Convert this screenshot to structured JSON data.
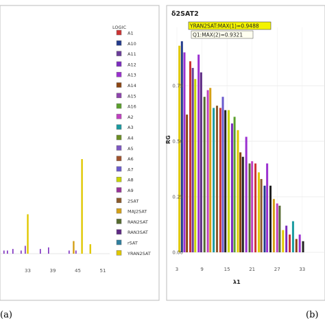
{
  "left_panel": {
    "panel_label": "(a)",
    "legend_title": "LOGIC",
    "legend": [
      {
        "name": "A1",
        "color": "#cc3333"
      },
      {
        "name": "A10",
        "color": "#233b8c"
      },
      {
        "name": "A11",
        "color": "#6a3d9a"
      },
      {
        "name": "A12",
        "color": "#7b2cbf"
      },
      {
        "name": "A13",
        "color": "#9b30d0"
      },
      {
        "name": "A14",
        "color": "#8b4513"
      },
      {
        "name": "A15",
        "color": "#8e44ad"
      },
      {
        "name": "A16",
        "color": "#5aa02c"
      },
      {
        "name": "A2",
        "color": "#c040c0"
      },
      {
        "name": "A3",
        "color": "#1a9aa0"
      },
      {
        "name": "A4",
        "color": "#6b8e23"
      },
      {
        "name": "A5",
        "color": "#7e57c2"
      },
      {
        "name": "A6",
        "color": "#a0522d"
      },
      {
        "name": "A7",
        "color": "#6a5acd"
      },
      {
        "name": "A8",
        "color": "#c8d400"
      },
      {
        "name": "A9",
        "color": "#993399"
      },
      {
        "name": "2SAT",
        "color": "#8b5a2b"
      },
      {
        "name": "MAJ2SAT",
        "color": "#d4a017"
      },
      {
        "name": "RAN2SAT",
        "color": "#556b2f"
      },
      {
        "name": "RAN3SAT",
        "color": "#5e2a84"
      },
      {
        "name": "rSAT",
        "color": "#2f7f9f"
      },
      {
        "name": "YRAN2SAT",
        "color": "#e0c800"
      }
    ],
    "x_ticks": [
      "33",
      "39",
      "45",
      "51"
    ]
  },
  "right_panel": {
    "panel_label": "(b)",
    "title": "δ2SAT2",
    "annotation_1": "YRAN2SAT:MAX(1)=0.9488",
    "annotation_2": "Q1:MAX(2)=0.9321",
    "y_label": "RG",
    "x_label": "λ1",
    "y_ticks": [
      "0.00",
      "0.25",
      "0.50",
      "0.75"
    ],
    "x_ticks": [
      "3",
      "9",
      "15",
      "21",
      "27",
      "33"
    ]
  },
  "chart_data": [
    {
      "type": "bar",
      "title": "",
      "xlabel": "",
      "ylabel": "",
      "x": [
        33,
        39,
        45,
        51
      ],
      "notes": "partially visible panel",
      "series": [
        {
          "name": "YRAN2SAT",
          "x": [
            33,
            46,
            48
          ],
          "values": [
            0.25,
            0.6,
            0.06
          ]
        },
        {
          "name": "MAJ2SAT",
          "x": [
            44
          ],
          "values": [
            0.08
          ]
        }
      ]
    },
    {
      "type": "bar",
      "title": "δ2SAT2",
      "xlabel": "λ1",
      "ylabel": "RG",
      "ylim": [
        0,
        1.0
      ],
      "yticks": [
        0.0,
        0.25,
        0.5,
        0.75
      ],
      "xticks": [
        3,
        9,
        15,
        21,
        27,
        33
      ],
      "max_labels": [
        {
          "label": "YRAN2SAT:MAX(1)=0.9488",
          "x": 4,
          "y": 0.9488
        },
        {
          "label": "Q1:MAX(2)=0.9321",
          "x": 5,
          "y": 0.9321
        }
      ],
      "bars": [
        {
          "x": 3.6,
          "y": 0.93,
          "color": "#e0c800"
        },
        {
          "x": 4.2,
          "y": 0.95,
          "color": "#233b8c"
        },
        {
          "x": 4.8,
          "y": 0.9,
          "color": "#9b30d0"
        },
        {
          "x": 5.4,
          "y": 0.62,
          "color": "#8b4513"
        },
        {
          "x": 6.2,
          "y": 0.86,
          "color": "#cc3333"
        },
        {
          "x": 6.8,
          "y": 0.83,
          "color": "#6a3d9a"
        },
        {
          "x": 7.4,
          "y": 0.78,
          "color": "#c8d400"
        },
        {
          "x": 8.2,
          "y": 0.89,
          "color": "#9b30d0"
        },
        {
          "x": 8.8,
          "y": 0.81,
          "color": "#5e2a84"
        },
        {
          "x": 9.6,
          "y": 0.7,
          "color": "#556b2f"
        },
        {
          "x": 10.4,
          "y": 0.73,
          "color": "#c040c0"
        },
        {
          "x": 11.0,
          "y": 0.74,
          "color": "#d4a017"
        },
        {
          "x": 11.8,
          "y": 0.65,
          "color": "#1a9aa0"
        },
        {
          "x": 12.6,
          "y": 0.66,
          "color": "#8b5a2b"
        },
        {
          "x": 13.4,
          "y": 0.65,
          "color": "#cc3333"
        },
        {
          "x": 14.0,
          "y": 0.7,
          "color": "#6a5acd"
        },
        {
          "x": 14.6,
          "y": 0.64,
          "color": "#222222"
        },
        {
          "x": 15.4,
          "y": 0.64,
          "color": "#c8d400"
        },
        {
          "x": 16.2,
          "y": 0.58,
          "color": "#7b2cbf"
        },
        {
          "x": 16.8,
          "y": 0.61,
          "color": "#5aa02c"
        },
        {
          "x": 17.6,
          "y": 0.55,
          "color": "#e0c800"
        },
        {
          "x": 18.2,
          "y": 0.45,
          "color": "#8b4513"
        },
        {
          "x": 18.8,
          "y": 0.43,
          "color": "#222222"
        },
        {
          "x": 19.6,
          "y": 0.52,
          "color": "#9b30d0"
        },
        {
          "x": 20.4,
          "y": 0.4,
          "color": "#556b2f"
        },
        {
          "x": 21.0,
          "y": 0.41,
          "color": "#c040c0"
        },
        {
          "x": 21.8,
          "y": 0.4,
          "color": "#cc3333"
        },
        {
          "x": 22.6,
          "y": 0.36,
          "color": "#e0c800"
        },
        {
          "x": 23.2,
          "y": 0.33,
          "color": "#8b5a2b"
        },
        {
          "x": 24.0,
          "y": 0.3,
          "color": "#233b8c"
        },
        {
          "x": 24.6,
          "y": 0.4,
          "color": "#9b30d0"
        },
        {
          "x": 25.4,
          "y": 0.3,
          "color": "#222222"
        },
        {
          "x": 26.2,
          "y": 0.24,
          "color": "#d4a017"
        },
        {
          "x": 27.0,
          "y": 0.22,
          "color": "#c040c0"
        },
        {
          "x": 27.6,
          "y": 0.21,
          "color": "#556b2f"
        },
        {
          "x": 28.4,
          "y": 0.1,
          "color": "#e0c800"
        },
        {
          "x": 29.2,
          "y": 0.12,
          "color": "#7b2cbf"
        },
        {
          "x": 30.0,
          "y": 0.08,
          "color": "#cc3333"
        },
        {
          "x": 30.8,
          "y": 0.14,
          "color": "#1a9aa0"
        },
        {
          "x": 31.6,
          "y": 0.06,
          "color": "#8b4513"
        },
        {
          "x": 32.4,
          "y": 0.08,
          "color": "#9b30d0"
        },
        {
          "x": 33.2,
          "y": 0.05,
          "color": "#222222"
        }
      ]
    }
  ]
}
